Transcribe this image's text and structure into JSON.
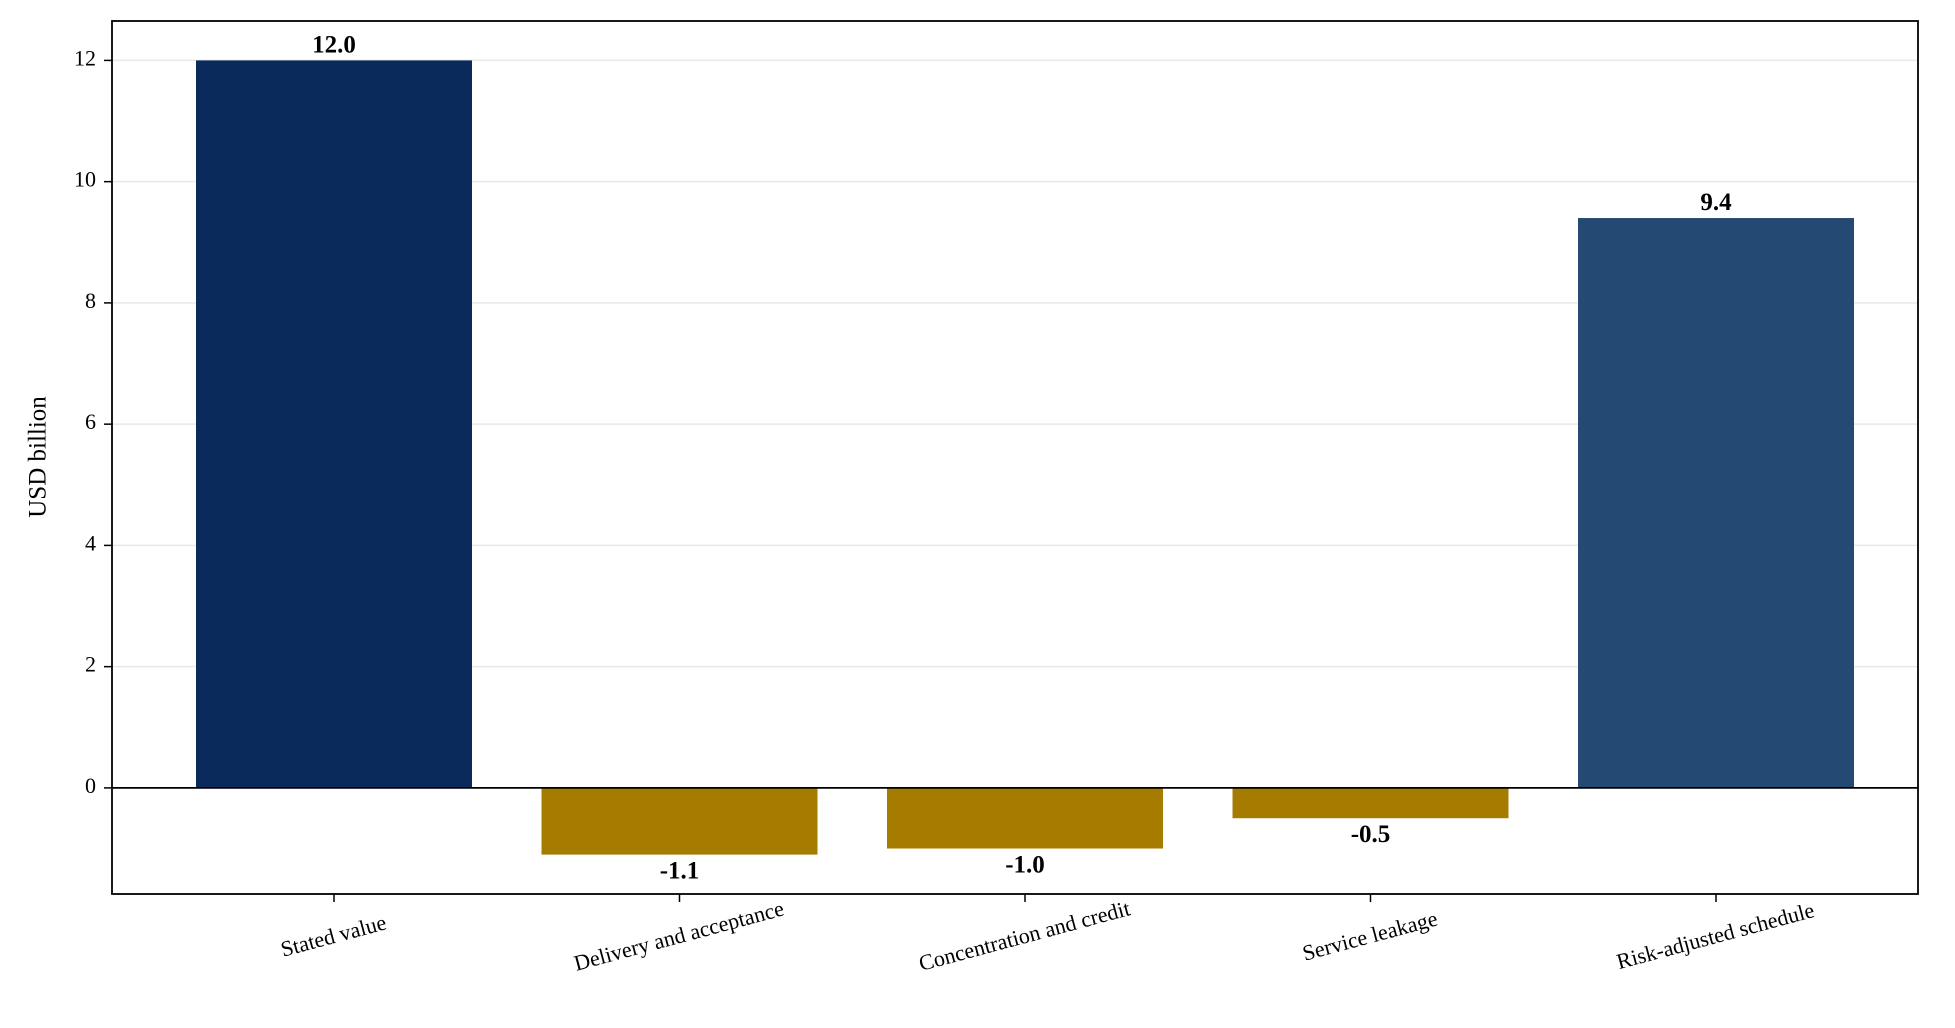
{
  "chart_data": {
    "type": "bar",
    "subtype": "waterfall-style contributions",
    "categories": [
      "Stated value",
      "Delivery and acceptance",
      "Concentration and credit",
      "Service leakage",
      "Risk-adjusted schedule"
    ],
    "values": [
      12.0,
      -1.1,
      -1.0,
      -0.5,
      9.4
    ],
    "value_labels": [
      "12.0",
      "-1.1",
      "-1.0",
      "-0.5",
      "9.4"
    ],
    "bar_colors": [
      "#0a2a5c",
      "#a67c00",
      "#a67c00",
      "#a67c00",
      "#244a73"
    ],
    "ylabel": "USD billion",
    "xlabel": "",
    "ylim": [
      -1.75,
      12.65
    ],
    "yticks": [
      0,
      2,
      4,
      6,
      8,
      10,
      12
    ],
    "ytick_labels": [
      "0",
      "2",
      "4",
      "6",
      "8",
      "10",
      "12"
    ],
    "grid": "horizontal",
    "zero_line": true,
    "x_tick_rotation_deg": -15
  },
  "colors": {
    "stated": "#0a2a5c",
    "adjustment": "#a67c00",
    "result": "#244a73",
    "grid": "#e8e8e8",
    "axis": "#000000"
  }
}
